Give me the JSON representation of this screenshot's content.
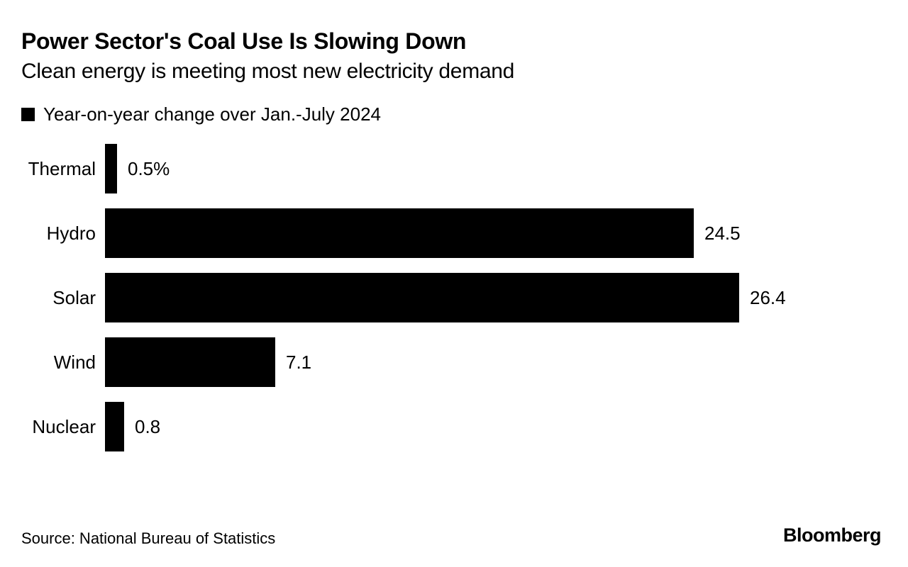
{
  "header": {
    "title": "Power Sector's Coal Use Is Slowing Down",
    "subtitle": "Clean energy is meeting most new electricity demand"
  },
  "legend": {
    "label": "Year-on-year change over Jan.-July 2024",
    "swatch_color": "#000000"
  },
  "chart_data": {
    "type": "bar",
    "orientation": "horizontal",
    "title": "Power Sector's Coal Use Is Slowing Down",
    "subtitle": "Clean energy is meeting most new electricity demand",
    "series_name": "Year-on-year change over Jan.-July 2024",
    "categories": [
      "Thermal",
      "Hydro",
      "Solar",
      "Wind",
      "Nuclear"
    ],
    "values": [
      0.5,
      24.5,
      26.4,
      7.1,
      0.8
    ],
    "value_labels": [
      "0.5%",
      "24.5",
      "26.4",
      "7.1",
      "0.8"
    ],
    "unit": "%",
    "xlim": [
      0,
      26.4
    ],
    "grid": false,
    "bar_color": "#000000",
    "legend_position": "top-left"
  },
  "footer": {
    "source": "Source: National Bureau of Statistics",
    "brand": "Bloomberg"
  },
  "colors": {
    "background": "#ffffff",
    "text": "#000000",
    "bar": "#000000"
  }
}
